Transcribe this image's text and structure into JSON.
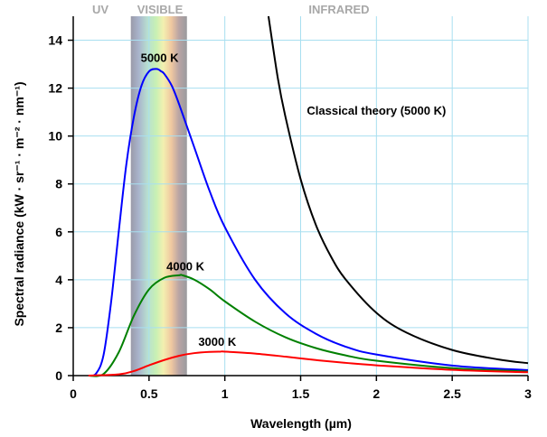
{
  "chart_data": {
    "type": "line",
    "title": "",
    "xlabel": "Wavelength (µm)",
    "ylabel": "Spectral radiance (kW · sr⁻¹ · m⁻² · nm⁻¹)",
    "xlim": [
      0,
      3
    ],
    "ylim": [
      0,
      15
    ],
    "x_ticks": [
      0,
      0.5,
      1,
      1.5,
      2,
      2.5,
      3
    ],
    "x_tick_labels": [
      "0",
      "0.5",
      "1",
      "1.5",
      "2",
      "2.5",
      "3"
    ],
    "y_ticks": [
      0,
      2,
      4,
      6,
      8,
      10,
      12,
      14
    ],
    "y_tick_labels": [
      "0",
      "2",
      "4",
      "6",
      "8",
      "10",
      "12",
      "14"
    ],
    "grid": true,
    "regions": [
      {
        "label": "UV",
        "from": 0,
        "to": 0.38
      },
      {
        "label": "VISIBLE",
        "from": 0.38,
        "to": 0.75
      },
      {
        "label": "INFRARED",
        "from": 0.75,
        "to": 3
      }
    ],
    "series": [
      {
        "name": "5000 K",
        "color": "#0000ff",
        "x": [
          0.1,
          0.15,
          0.2,
          0.25,
          0.3,
          0.35,
          0.4,
          0.45,
          0.5,
          0.55,
          0.58,
          0.6,
          0.65,
          0.7,
          0.8,
          0.9,
          1.0,
          1.2,
          1.4,
          1.6,
          1.8,
          2.0,
          2.5,
          3.0
        ],
        "y": [
          0.0,
          0.08,
          0.86,
          3.08,
          6.0,
          8.8,
          10.8,
          12.1,
          12.7,
          12.8,
          12.7,
          12.6,
          12.1,
          11.3,
          9.5,
          7.7,
          6.2,
          4.0,
          2.6,
          1.75,
          1.2,
          0.88,
          0.42,
          0.23
        ]
      },
      {
        "name": "4000 K",
        "color": "#008000",
        "x": [
          0.1,
          0.2,
          0.3,
          0.4,
          0.5,
          0.6,
          0.7,
          0.72,
          0.8,
          0.9,
          1.0,
          1.2,
          1.4,
          1.6,
          1.8,
          2.0,
          2.5,
          3.0
        ],
        "y": [
          0.0,
          0.07,
          0.97,
          2.5,
          3.6,
          4.08,
          4.19,
          4.19,
          4.0,
          3.6,
          3.1,
          2.25,
          1.6,
          1.15,
          0.84,
          0.62,
          0.31,
          0.17
        ]
      },
      {
        "name": "3000 K",
        "color": "#ff0000",
        "x": [
          0.1,
          0.3,
          0.4,
          0.5,
          0.6,
          0.7,
          0.8,
          0.9,
          0.97,
          1.0,
          1.2,
          1.4,
          1.6,
          1.8,
          2.0,
          2.5,
          3.0
        ],
        "y": [
          0.0,
          0.05,
          0.19,
          0.43,
          0.65,
          0.83,
          0.94,
          0.99,
          1.0,
          1.0,
          0.92,
          0.79,
          0.65,
          0.53,
          0.43,
          0.24,
          0.14
        ]
      },
      {
        "name": "Classical theory (5000 K)",
        "color": "#000000",
        "x": [
          1.288,
          1.35,
          1.4,
          1.5,
          1.6,
          1.7,
          1.8,
          2.0,
          2.2,
          2.5,
          2.8,
          3.0
        ],
        "y": [
          15.0,
          12.4,
          10.8,
          8.2,
          6.3,
          4.97,
          3.99,
          2.62,
          1.79,
          1.07,
          0.68,
          0.52
        ]
      }
    ],
    "annotations": [
      {
        "text": "5000 K",
        "x": 0.57,
        "y": 13.1
      },
      {
        "text": "4000 K",
        "x": 0.74,
        "y": 4.4
      },
      {
        "text": "3000 K",
        "x": 0.95,
        "y": 1.25
      },
      {
        "text": "Classical theory (5000 K)",
        "x": 2.0,
        "y": 10.9
      }
    ]
  }
}
